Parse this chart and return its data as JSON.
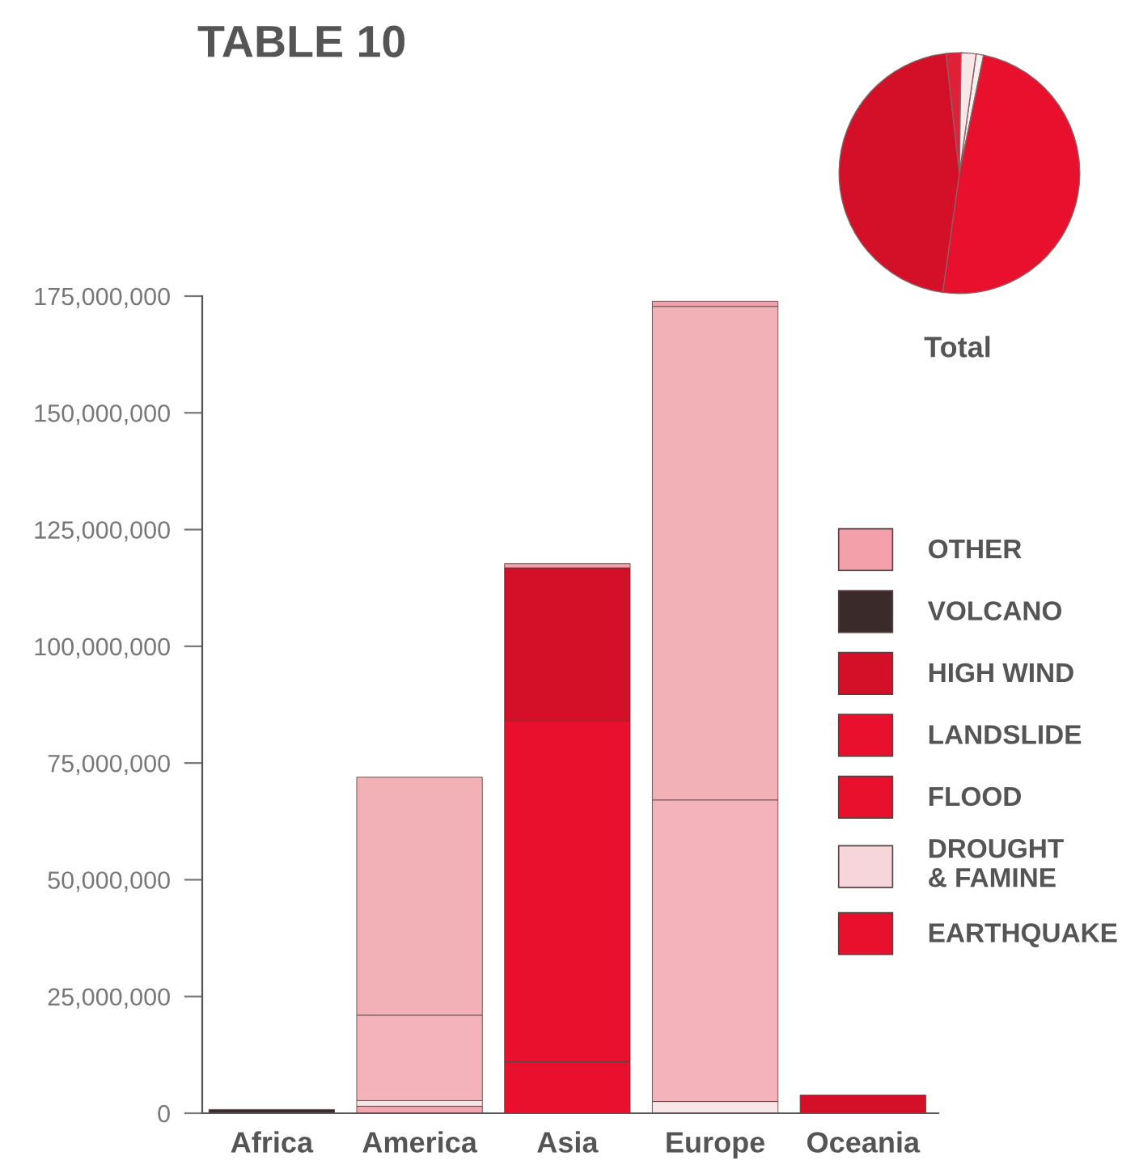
{
  "chart_data": [
    {
      "type": "bar",
      "title": "TABLE 10",
      "stacked": true,
      "categories": [
        "Africa",
        "America",
        "Asia",
        "Europe",
        "Oceania"
      ],
      "series": [
        {
          "name": "EARTHQUAKE",
          "color": "#e8102c",
          "colors": [
            "#e8102c",
            "#f2a7b0",
            "#e8102c",
            "#f2a7b0",
            "#e8102c"
          ],
          "values": [
            null,
            1500000,
            11000000,
            null,
            null
          ]
        },
        {
          "name": "DROUGHT\n& FAMINE",
          "color": "#f6d6da",
          "colors": [
            "#f8e6e8",
            "#f8e6e8",
            "#f8e6e8",
            "#f8e6e8",
            "#f8e6e8"
          ],
          "values": [
            null,
            1200000,
            null,
            2500000,
            null
          ]
        },
        {
          "name": "FLOOD",
          "color": "#e8102c",
          "colors": [
            "#e8102c",
            "#f4b3ba",
            "#e8102c",
            "#f4b3ba",
            "#e8102c"
          ],
          "values": [
            null,
            18300000,
            73000000,
            64600000,
            null
          ]
        },
        {
          "name": "LANDSLIDE",
          "color": "#e8102c",
          "colors": [
            "#e8102c",
            "#f4b3ba",
            "#e8102c",
            "#f4b3ba",
            "#e8102c"
          ],
          "values": [
            null,
            null,
            null,
            null,
            null
          ]
        },
        {
          "name": "HIGH WIND",
          "color": "#d40f28",
          "colors": [
            "#d40f28",
            "#f2b0b7",
            "#d40f28",
            "#f2b0b7",
            "#d40f28"
          ],
          "values": [
            null,
            51000000,
            32800000,
            105700000,
            3900000
          ]
        },
        {
          "name": "VOLCANO",
          "color": "#3b2a2a",
          "colors": [
            "#3b2a2a",
            "#3b2a2a",
            "#3b2a2a",
            "#3b2a2a",
            "#3b2a2a"
          ],
          "values": [
            800000,
            null,
            null,
            null,
            null
          ]
        },
        {
          "name": "OTHER",
          "color": "#f4a0aa",
          "colors": [
            "#f4a0aa",
            "#f4a0aa",
            "#f4a0aa",
            "#f4a0aa",
            "#f4a0aa"
          ],
          "values": [
            null,
            null,
            900000,
            1100000,
            null
          ]
        }
      ],
      "ylim": [
        0,
        175000000
      ],
      "yticks": [
        {
          "value": 0,
          "label": "0"
        },
        {
          "value": 25000000,
          "label": "25,000,000"
        },
        {
          "value": 50000000,
          "label": "50,000,000"
        },
        {
          "value": 75000000,
          "label": "75,000,000"
        },
        {
          "value": 100000000,
          "label": "100,000,000"
        },
        {
          "value": 125000000,
          "label": "125,000,000"
        },
        {
          "value": 150000000,
          "label": "150,000,000"
        },
        {
          "value": 175000000,
          "label": "175,000,000"
        }
      ],
      "grid": false,
      "legend": "right"
    },
    {
      "type": "pie",
      "title": "Total",
      "categories": [
        null,
        null,
        null,
        null,
        null
      ],
      "values": [
        1,
        49,
        46,
        2,
        2
      ],
      "colors": [
        "#f4f0f0",
        "#e8102c",
        "#d40f28",
        "#e02038",
        "#f8e6e8"
      ]
    }
  ]
}
